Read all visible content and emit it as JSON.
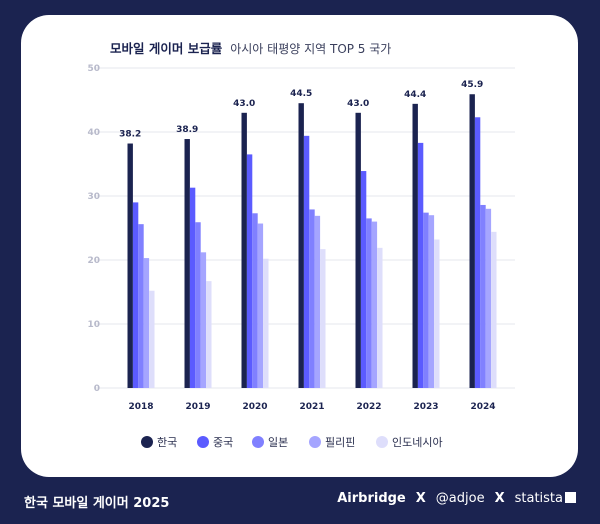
{
  "chart_data": {
    "type": "bar",
    "title": "모바일 게이머 보급률",
    "subtitle": "아시아 태평양 지역 TOP 5 국가",
    "categories": [
      "2018",
      "2019",
      "2020",
      "2021",
      "2022",
      "2023",
      "2024"
    ],
    "ylim": [
      0,
      50
    ],
    "yticks": [
      "0",
      "10",
      "20",
      "30",
      "40",
      "50"
    ],
    "grid": true,
    "legend_position": "bottom",
    "series": [
      {
        "name": "한국",
        "color": "#1b2350",
        "values": [
          38.2,
          38.9,
          43.0,
          44.5,
          43.0,
          44.4,
          45.9
        ],
        "labels": [
          "38.2",
          "38.9",
          "43.0",
          "44.5",
          "43.0",
          "44.4",
          "45.9"
        ]
      },
      {
        "name": "중국",
        "color": "#5b5bff",
        "values": [
          29.0,
          31.3,
          36.5,
          39.4,
          33.9,
          38.3,
          42.3
        ]
      },
      {
        "name": "일본",
        "color": "#8080ff",
        "values": [
          25.6,
          25.9,
          27.3,
          27.9,
          26.5,
          27.4,
          28.6
        ]
      },
      {
        "name": "필리핀",
        "color": "#a5a5ff",
        "values": [
          20.3,
          21.2,
          25.7,
          26.9,
          26.0,
          27.0,
          28.0
        ]
      },
      {
        "name": "인도네시아",
        "color": "#dedefb",
        "values": [
          15.2,
          16.7,
          20.2,
          21.7,
          21.9,
          23.2,
          24.4
        ]
      }
    ]
  },
  "footer": {
    "title": "한국 모바일 게이머 2025",
    "partners": [
      "Airbridge",
      "X",
      "@adjoe",
      "X",
      "statista"
    ]
  }
}
